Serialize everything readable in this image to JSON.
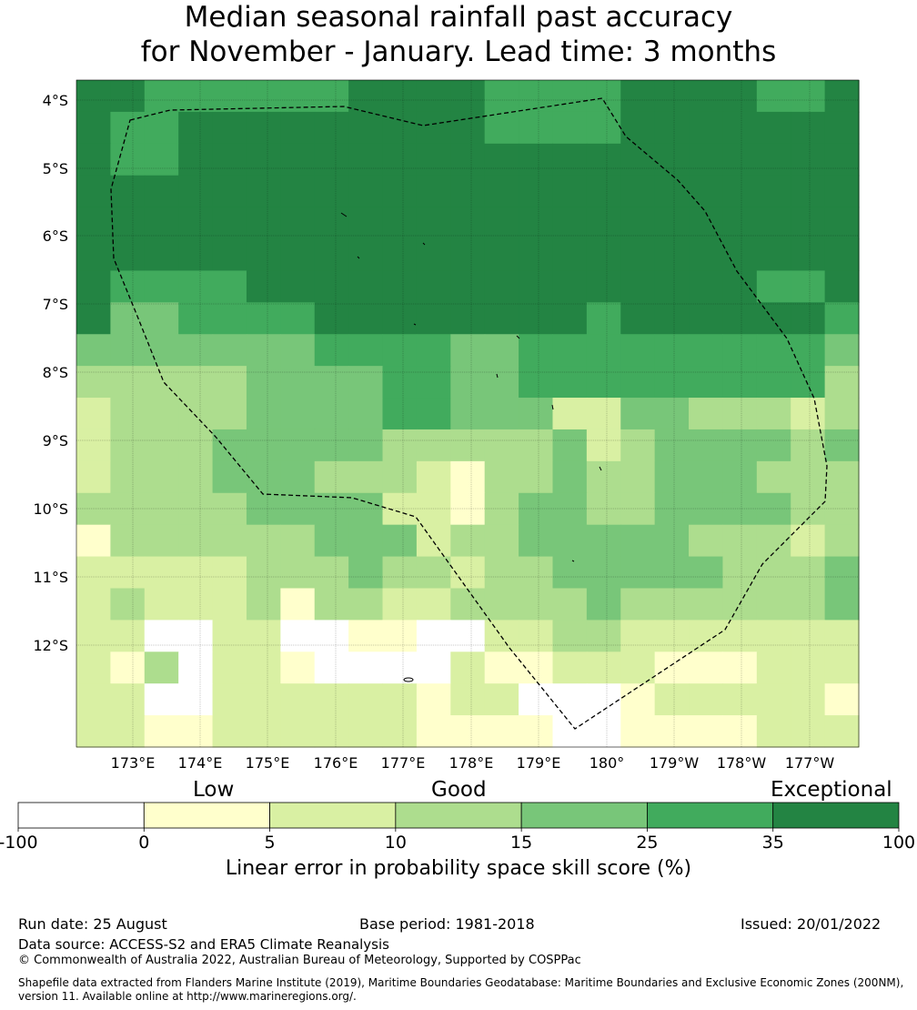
{
  "title": {
    "line1": "Median seasonal rainfall past accuracy",
    "line2": "for November - January. Lead time: 3 months"
  },
  "map": {
    "lat_labels": [
      "4°S",
      "5°S",
      "6°S",
      "7°S",
      "8°S",
      "9°S",
      "10°S",
      "11°S",
      "12°S"
    ],
    "lon_labels": [
      "173°E",
      "174°E",
      "175°E",
      "176°E",
      "177°E",
      "178°E",
      "179°E",
      "180°",
      "179°W",
      "178°W",
      "177°W"
    ],
    "grid_rows": [
      "66555555666655556666556",
      "65566666666655556666666",
      "65566666666666666666666",
      "66666666666666666666666",
      "66666666666666666666666",
      "66666666666666666666666",
      "65555666666666666666556",
      "64455556666666656666665",
      "44444445555445555555554",
      "33333444455445555555553",
      "23333444455444224433323",
      "23334444433333423444434",
      "23334443332133433444333",
      "33333444422134433444433",
      "13333334442334444433323",
      "22222333433233444443334",
      "23222313322333343333334",
      "22002200110022332222222",
      "21302210000211222111222",
      "22002222221220001222221",
      "22112222221111001111222"
    ],
    "colors": {
      "0": "#ffffff",
      "1": "#ffffcc",
      "2": "#d9f0a3",
      "3": "#addd8e",
      "4": "#78c679",
      "5": "#41ab5d",
      "6": "#238443"
    }
  },
  "colorbar": {
    "categories": [
      "Low",
      "Good",
      "Exceptional"
    ],
    "ticks": [
      "-100",
      "0",
      "5",
      "10",
      "15",
      "25",
      "35",
      "100"
    ],
    "label": "Linear error in probability space skill score (%)"
  },
  "footer": {
    "run_date": "Run date: 25 August",
    "base_period": "Base period: 1981-2018",
    "issued": "Issued: 20/01/2022",
    "data_source": "Data source: ACCESS-S2 and ERA5 Climate Reanalysis",
    "copyright": "© Commonwealth of Australia 2022, Australian Bureau of Meteorology, Supported by COSPPac",
    "shapefile_line1": "Shapefile data extracted from Flanders Marine Institute (2019), Maritime Boundaries Geodatabase: Maritime Boundaries and Exclusive Economic Zones (200NM),",
    "shapefile_line2": "version 11. Available online at http://www.marineregions.org/."
  }
}
